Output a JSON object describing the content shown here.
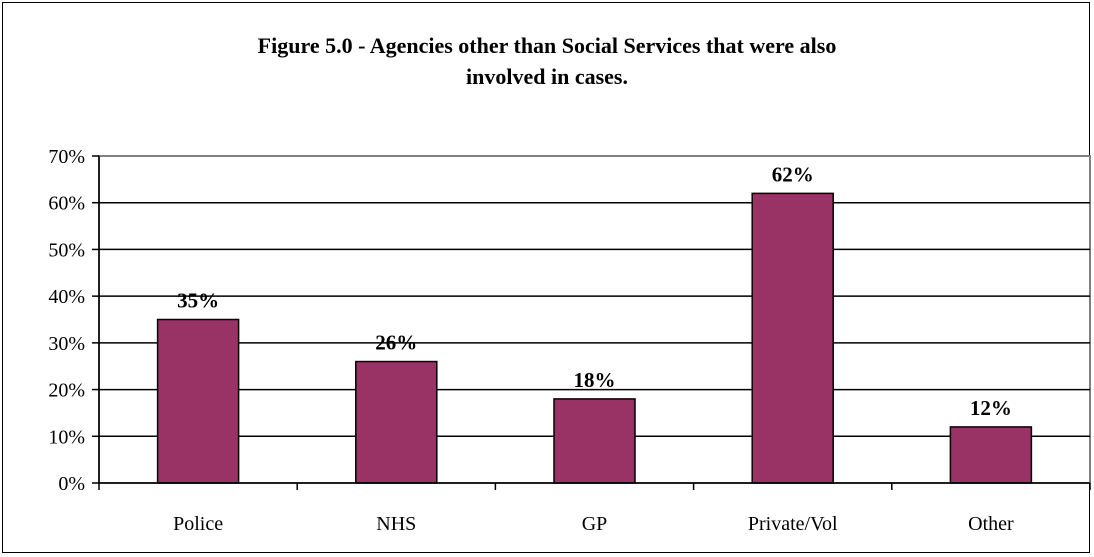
{
  "chart_data": {
    "type": "bar",
    "title_line1": "Figure 5.0 - Agencies other than Social Services that were also",
    "title_line2": "involved in cases.",
    "categories": [
      "Police",
      "NHS",
      "GP",
      "Private/Vol",
      "Other"
    ],
    "values": [
      35,
      26,
      18,
      62,
      12
    ],
    "data_labels": [
      "35%",
      "26%",
      "18%",
      "62%",
      "12%"
    ],
    "ylim": [
      0,
      70
    ],
    "yticks": [
      0,
      10,
      20,
      30,
      40,
      50,
      60,
      70
    ],
    "ytick_labels": [
      "0%",
      "10%",
      "20%",
      "30%",
      "40%",
      "50%",
      "60%",
      "70%"
    ],
    "xlabel": "",
    "ylabel": "",
    "grid": true,
    "bar_color": "#993366"
  }
}
